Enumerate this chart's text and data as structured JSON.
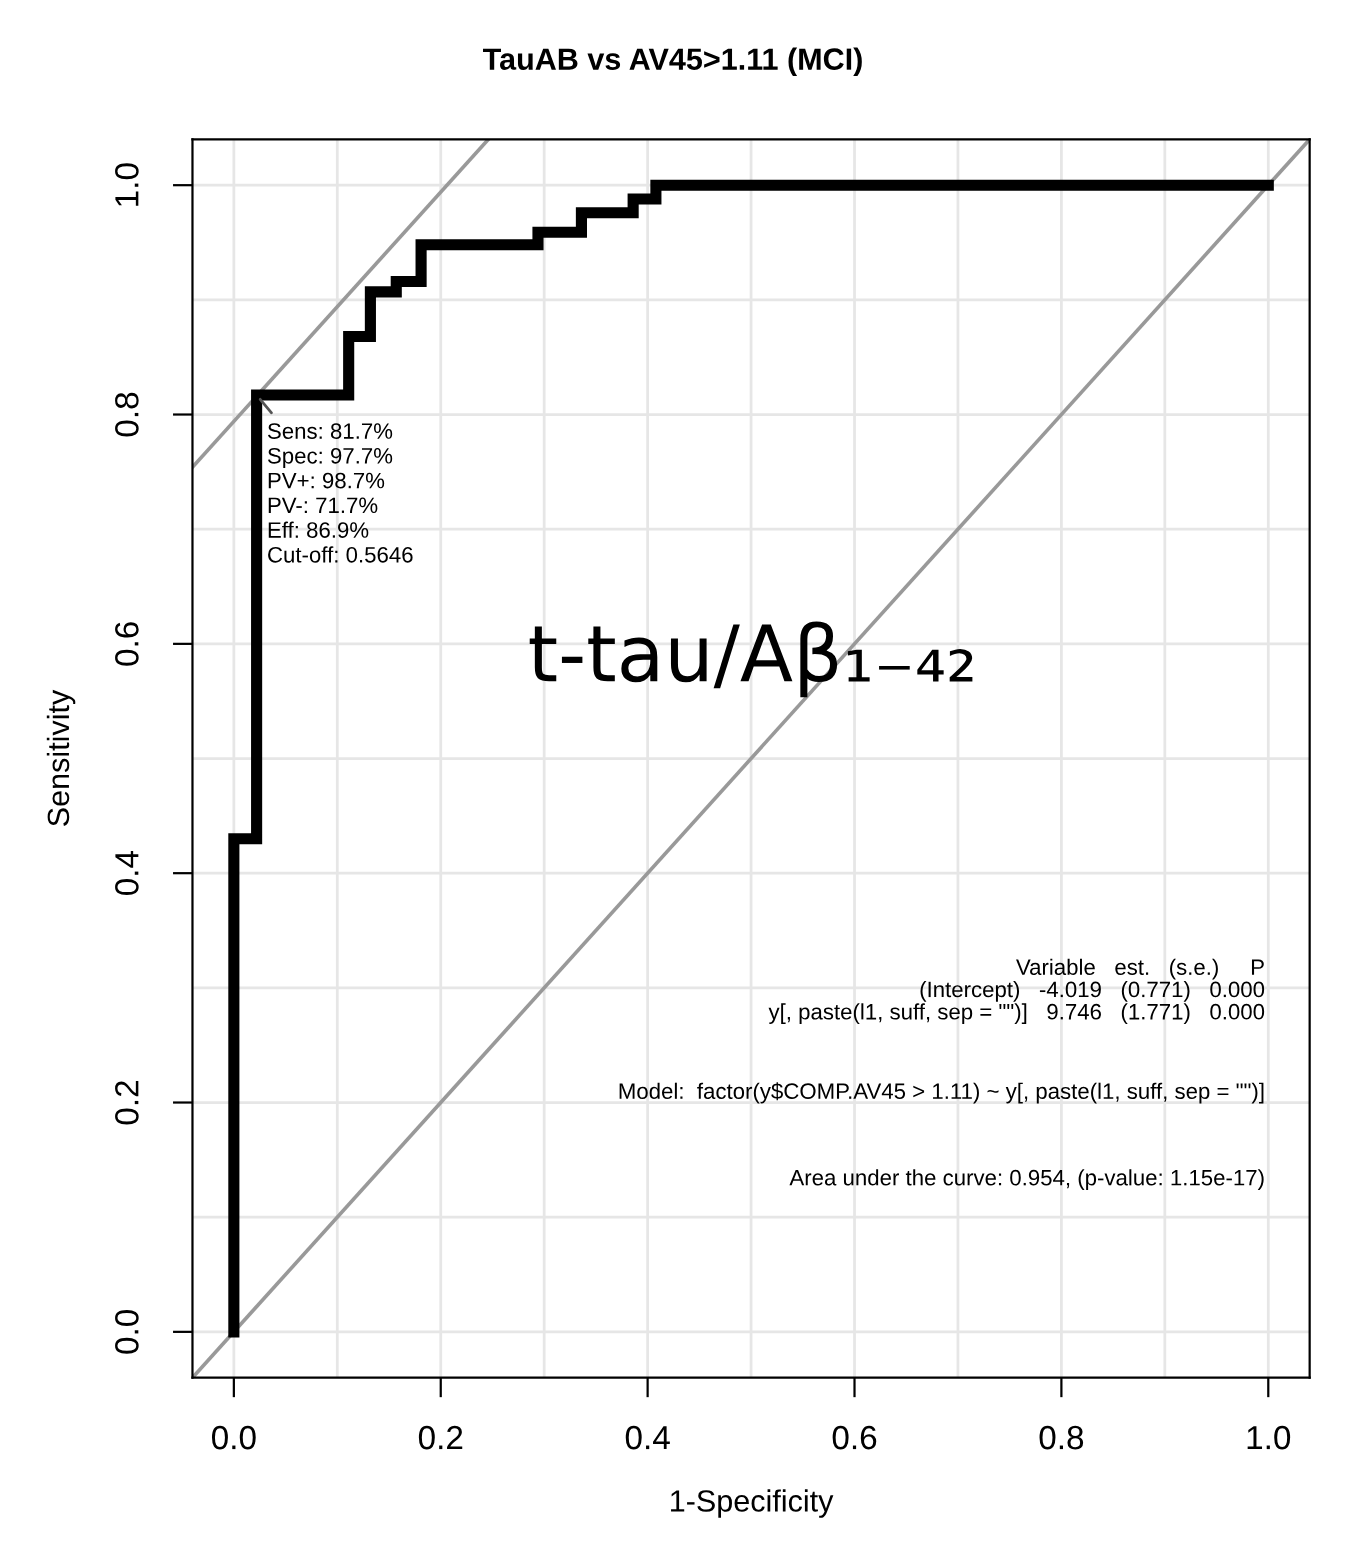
{
  "chart_data": {
    "type": "step",
    "title": "TauAB vs AV45>1.11 (MCI)",
    "xlabel": "1-Specificity",
    "ylabel": "Sensitivity",
    "series": [
      {
        "color": "#000000",
        "x": [
          0,
          0,
          0.022,
          0.022,
          0.111,
          0.111,
          0.132,
          0.132,
          0.157,
          0.157,
          0.181,
          0.181,
          0.294,
          0.294,
          0.336,
          0.336,
          0.386,
          0.386,
          0.408,
          0.408,
          1.0
        ],
        "values": [
          0,
          0.43,
          0.43,
          0.817,
          0.817,
          0.868,
          0.868,
          0.907,
          0.907,
          0.916,
          0.916,
          0.948,
          0.948,
          0.959,
          0.959,
          0.976,
          0.976,
          0.988,
          0.988,
          1.0,
          1.0
        ]
      },
      {
        "type": "line",
        "color": "#999999",
        "x": [
          -0.04,
          1.04
        ],
        "values": [
          -0.04,
          1.04
        ]
      },
      {
        "type": "line",
        "color": "#999999",
        "x": [
          -0.04,
          0.246
        ],
        "values": [
          0.754,
          1.04
        ]
      }
    ],
    "annotations": [
      {
        "text": "Sens: 81.7%\nSpec: 97.7%\nPV+: 98.7%\nPV-: 71.7%\nEff: 86.9%\nCut-off: 0.5646",
        "x": 0.022,
        "y": 0.817
      },
      "t-tau/Aβ₁₋₄₂",
      "Variable   est.   (s.e.)     P",
      "(Intercept)   -4.019   (0.771)   0.000",
      "y[, paste(l1, suff, sep = \"\")]   9.746   (1.771)   0.000",
      "Model:  factor(y$COMP.AV45 > 1.11) ~ y[, paste(l1, suff, sep = \"\")]",
      "Area under the curve: 0.954, (p-value: 1.15e-17)"
    ],
    "xlim": [
      -0.04,
      1.04
    ],
    "ylim": [
      -0.04,
      1.04
    ],
    "xticks": [
      {
        "value": 0,
        "label": "0.0"
      },
      0.2,
      0.4,
      0.6,
      0.8,
      {
        "value": 1,
        "label": "1.0"
      }
    ],
    "yticks": [
      {
        "value": 0,
        "label": "0.0"
      },
      0.2,
      0.4,
      0.6,
      0.8,
      {
        "value": 1,
        "label": "1.0"
      }
    ],
    "grid": true
  }
}
